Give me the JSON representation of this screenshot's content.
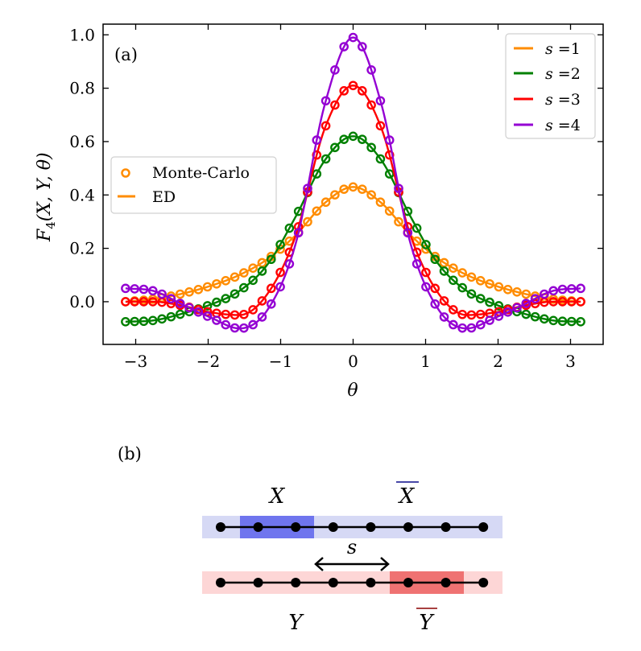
{
  "panel_a": {
    "label": "(a)",
    "chart_data": {
      "type": "line",
      "title": "",
      "xlabel": "θ",
      "ylabel": "F4(X,Y,θ)",
      "ylabel_parts": {
        "base": "F",
        "sub": "4",
        "args": "(X, Y, θ)"
      },
      "xlim": [
        -3.45,
        3.45
      ],
      "ylim": [
        -0.16,
        1.04
      ],
      "xticks": [
        -3,
        -2,
        -1,
        0,
        1,
        2,
        3
      ],
      "xtick_labels": [
        "−3",
        "−2",
        "−1",
        "0",
        "1",
        "2",
        "3"
      ],
      "yticks": [
        0.0,
        0.2,
        0.4,
        0.6,
        0.8,
        1.0
      ],
      "ytick_labels": [
        "0.0",
        "0.2",
        "0.4",
        "0.6",
        "0.8",
        "1.0"
      ],
      "legend_s": {
        "position": "top-right",
        "entries": [
          {
            "prefix": "s",
            "text": " =1",
            "color": "#ff8c00"
          },
          {
            "prefix": "s",
            "text": " =2",
            "color": "#008000"
          },
          {
            "prefix": "s",
            "text": " =3",
            "color": "#ff0000"
          },
          {
            "prefix": "s",
            "text": " =4",
            "color": "#9400d3"
          }
        ]
      },
      "legend_method": {
        "position": "center-left",
        "entries": [
          {
            "text": "Monte-Carlo",
            "marker": "circle",
            "color": "#ff8c00"
          },
          {
            "text": "ED",
            "marker": "line",
            "color": "#ff8c00"
          }
        ]
      },
      "x": [
        -3.14,
        -2.75,
        -2.36,
        -1.96,
        -1.57,
        -1.18,
        -0.79,
        -0.39,
        0.0,
        0.39,
        0.79,
        1.18,
        1.57,
        1.96,
        2.36,
        2.75,
        3.14
      ],
      "series": [
        {
          "name": "s=1",
          "color": "#ff8c00",
          "values": [
            0.0,
            0.01,
            0.03,
            0.06,
            0.1,
            0.16,
            0.25,
            0.37,
            0.43,
            0.37,
            0.25,
            0.16,
            0.1,
            0.06,
            0.03,
            0.01,
            0.0
          ]
        },
        {
          "name": "s=2",
          "color": "#008000",
          "values": [
            -0.075,
            -0.07,
            -0.045,
            -0.01,
            0.04,
            0.14,
            0.32,
            0.53,
            0.62,
            0.53,
            0.32,
            0.14,
            0.04,
            -0.01,
            -0.045,
            -0.07,
            -0.075
          ]
        },
        {
          "name": "s=3",
          "color": "#ff0000",
          "values": [
            0.0,
            0.0,
            -0.015,
            -0.04,
            -0.05,
            0.03,
            0.25,
            0.65,
            0.81,
            0.65,
            0.25,
            0.03,
            -0.05,
            -0.04,
            -0.015,
            0.0,
            0.0
          ]
        },
        {
          "name": "s=4",
          "color": "#9400d3",
          "values": [
            0.05,
            0.04,
            -0.01,
            -0.06,
            -0.1,
            -0.03,
            0.22,
            0.74,
            0.99,
            0.74,
            0.22,
            -0.03,
            -0.1,
            -0.06,
            -0.01,
            0.04,
            0.05
          ]
        }
      ]
    }
  },
  "panel_b": {
    "label": "(b)",
    "x_label": "X",
    "xbar_label": "X",
    "y_label": "Y",
    "ybar_label": "Y",
    "shift_label": "s",
    "sites_per_chain": 8,
    "x_region_sites": [
      1,
      2
    ],
    "y_region_sites": [
      5,
      6
    ],
    "colors": {
      "x_band": "#d6d9f5",
      "x_highlight": "#6f75ee",
      "y_band": "#fdd6d6",
      "y_highlight": "#ef7272",
      "x_text": "#0a0a8a",
      "y_text": "#8b0000"
    }
  }
}
